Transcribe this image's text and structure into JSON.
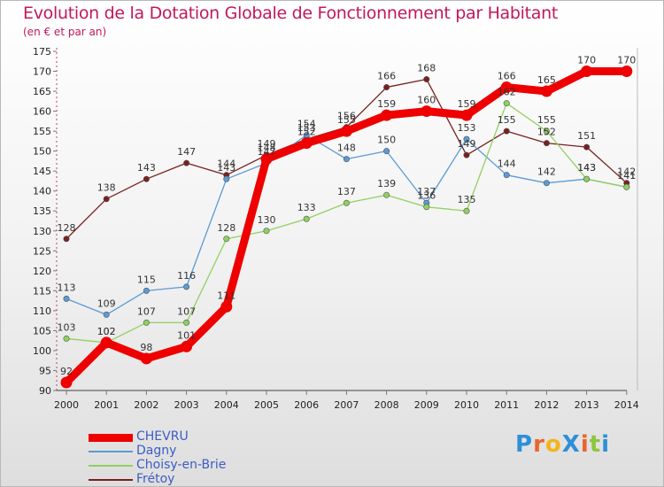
{
  "title": "Evolution de la Dotation Globale de Fonctionnement par Habitant",
  "subtitle": "(en € et par an)",
  "logo": "ProXiti",
  "chart_data": {
    "type": "line",
    "title": "Evolution de la Dotation Globale de Fonctionnement par Habitant",
    "subtitle": "(en € et par an)",
    "x": [
      "2000",
      "2001",
      "2002",
      "2003",
      "2004",
      "2005",
      "2006",
      "2007",
      "2008",
      "2009",
      "2010",
      "2011",
      "2012",
      "2013",
      "2014"
    ],
    "ylim": [
      90,
      175
    ],
    "yticks": [
      90,
      95,
      100,
      105,
      110,
      115,
      120,
      125,
      130,
      135,
      140,
      145,
      150,
      155,
      160,
      165,
      170,
      175
    ],
    "grid": false,
    "legend_position": "bottom-left",
    "series": [
      {
        "name": "CHEVRU",
        "color": "#ee0000",
        "values": [
          92,
          102,
          98,
          101,
          111,
          148,
          152,
          155,
          159,
          160,
          159,
          166,
          165,
          170,
          170
        ],
        "labels": [
          "92",
          "102",
          "98",
          "101",
          "111",
          "148",
          "152",
          "155",
          "159",
          "160",
          "159",
          "166",
          "165",
          "170",
          "170"
        ]
      },
      {
        "name": "Dagny",
        "color": "#5a9bd5",
        "values": [
          113,
          109,
          115,
          116,
          143,
          147,
          154,
          148,
          150,
          137,
          153,
          144,
          142,
          143,
          141
        ],
        "labels": [
          "113",
          "109",
          "115",
          "116",
          "143",
          "147",
          "154",
          "148",
          "150",
          "137",
          "153",
          "144",
          "142",
          "143",
          "141"
        ]
      },
      {
        "name": "Choisy-en-Brie",
        "color": "#90d060",
        "values": [
          103,
          102,
          107,
          107,
          128,
          130,
          133,
          137,
          139,
          136,
          135,
          162,
          155,
          143,
          141
        ],
        "labels": [
          "103",
          "102",
          "107",
          "107",
          "128",
          "130",
          "133",
          "137",
          "139",
          "136",
          "135",
          "162",
          "155",
          "143",
          "141"
        ]
      },
      {
        "name": "Frétoy",
        "color": "#7a1f1f",
        "values": [
          128,
          138,
          143,
          147,
          144,
          149,
          153,
          156,
          166,
          168,
          149,
          155,
          152,
          151,
          142
        ],
        "labels": [
          "128",
          "138",
          "143",
          "147",
          "144",
          "149",
          "153",
          "156",
          "166",
          "168",
          "149",
          "155",
          "152",
          "151",
          "142"
        ]
      }
    ]
  }
}
